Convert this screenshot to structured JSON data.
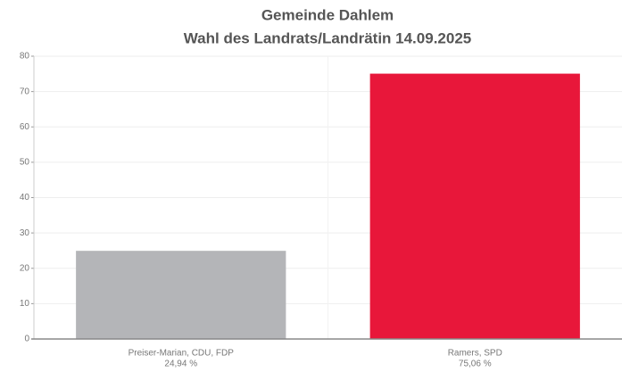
{
  "chart_data": {
    "type": "bar",
    "title": [
      "Gemeinde Dahlem",
      "Wahl des Landrats/Landrätin 14.09.2025"
    ],
    "categories": [
      "Preiser-Marian, CDU, FDP",
      "Ramers, SPD"
    ],
    "values": [
      24.94,
      75.06
    ],
    "value_labels": [
      "24,94 %",
      "75,06 %"
    ],
    "colors": [
      "#b4b5b8",
      "#e8173a"
    ],
    "ylim": [
      0,
      80
    ],
    "yticks": [
      0,
      10,
      20,
      30,
      40,
      50,
      60,
      70,
      80
    ],
    "grid": true
  }
}
